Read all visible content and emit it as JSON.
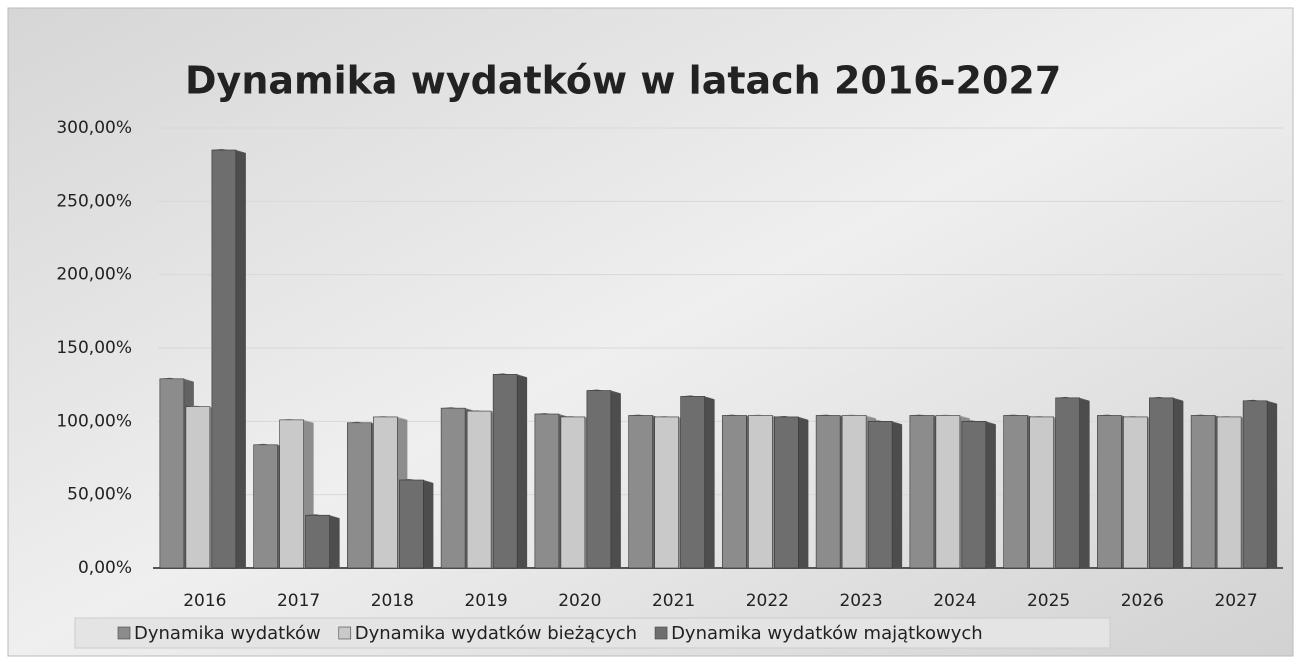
{
  "chart_data": {
    "type": "bar3d",
    "title": "Dynamika wydatków w latach 2016-2027",
    "categories": [
      "2016",
      "2017",
      "2018",
      "2019",
      "2020",
      "2021",
      "2022",
      "2023",
      "2024",
      "2025",
      "2026",
      "2027"
    ],
    "series": [
      {
        "name": "Dynamika wydatków",
        "color": "#8c8c8c",
        "values": [
          129,
          84,
          99,
          109,
          105,
          104,
          104,
          104,
          104,
          104,
          104,
          104
        ]
      },
      {
        "name": "Dynamika wydatków bieżących",
        "color": "#c9c9c9",
        "values": [
          110,
          101,
          103,
          107,
          103,
          103,
          104,
          104,
          104,
          103,
          103,
          103
        ]
      },
      {
        "name": "Dynamika wydatków majątkowych",
        "color": "#6e6e6e",
        "values": [
          285,
          36,
          60,
          132,
          121,
          117,
          103,
          100,
          100,
          116,
          116,
          114
        ]
      }
    ],
    "ylim": [
      0,
      300
    ],
    "yticks": [
      {
        "value": 0,
        "label": "0,00%"
      },
      {
        "value": 50,
        "label": "50,00%"
      },
      {
        "value": 100,
        "label": "100,00%"
      },
      {
        "value": 150,
        "label": "150,00%"
      },
      {
        "value": 200,
        "label": "200,00%"
      },
      {
        "value": 250,
        "label": "250,00%"
      },
      {
        "value": 300,
        "label": "300,00%"
      }
    ],
    "grid": true,
    "legend": "bottom"
  }
}
